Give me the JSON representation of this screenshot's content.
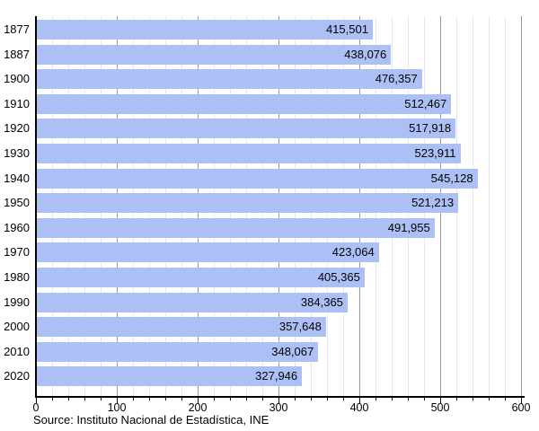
{
  "chart_data": {
    "type": "bar",
    "orientation": "horizontal",
    "title": "",
    "xlabel": "",
    "ylabel": "",
    "categories": [
      "1877",
      "1887",
      "1900",
      "1910",
      "1920",
      "1930",
      "1940",
      "1950",
      "1960",
      "1970",
      "1980",
      "1990",
      "2000",
      "2010",
      "2020"
    ],
    "values": [
      415501,
      438076,
      476357,
      512467,
      517918,
      523911,
      545128,
      521213,
      491955,
      423064,
      405365,
      384365,
      357648,
      348067,
      327946
    ],
    "value_labels": [
      "415,501",
      "438,076",
      "476,357",
      "512,467",
      "517,918",
      "523,911",
      "545,128",
      "521,213",
      "491,955",
      "423,064",
      "405,365",
      "384,365",
      "357,648",
      "348,067",
      "327,946"
    ],
    "x_ticks": [
      0,
      100,
      200,
      300,
      400,
      500,
      600
    ],
    "x_minor_step": 20,
    "xlim": [
      0,
      600
    ],
    "axis_scale_divisor": 1000,
    "grid": "on",
    "legend": "none",
    "source": "Source: Instituto Nacional de Estadística, INE",
    "colors": {
      "bar": "#adc0f5",
      "minor_grid": "#e7e7e7",
      "major_grid": "#9a9a9a",
      "axis": "#000000",
      "text": "#000000",
      "background": "#ffffff"
    }
  }
}
